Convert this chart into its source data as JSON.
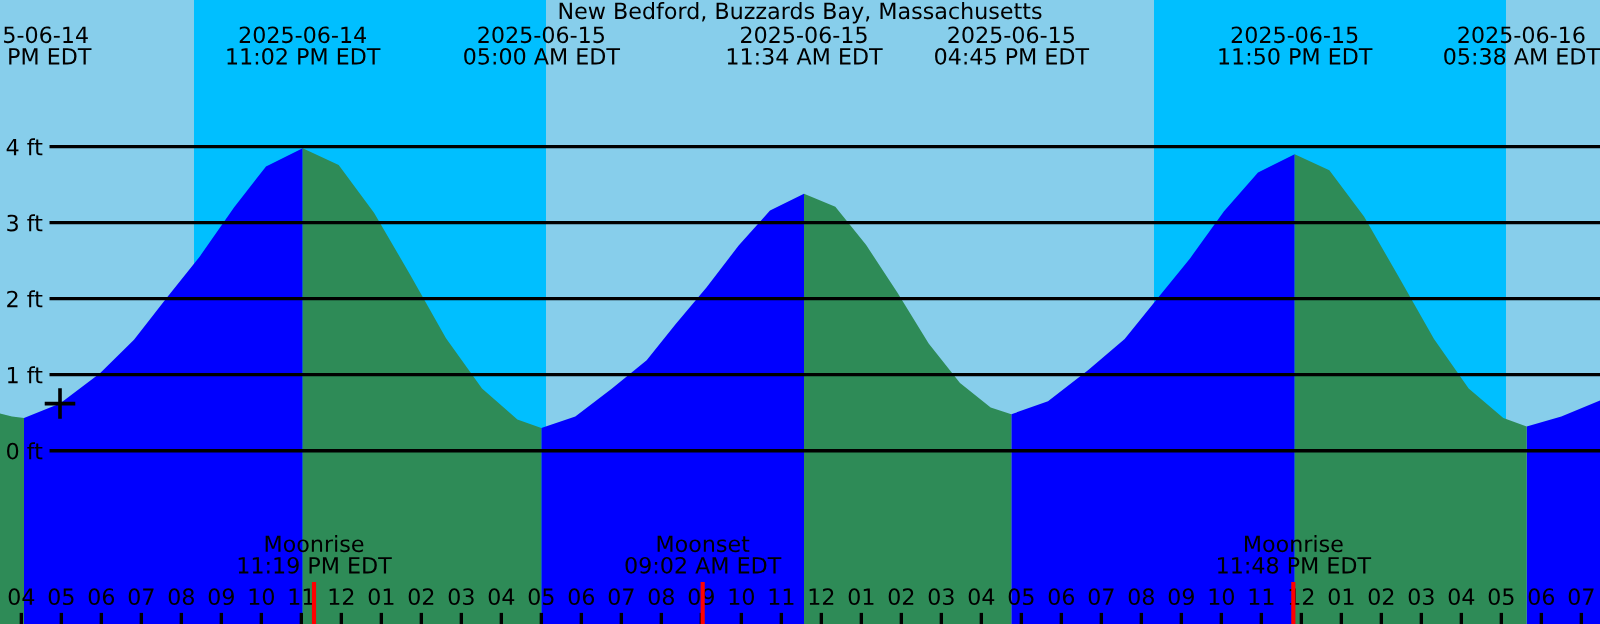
{
  "chart_data": {
    "type": "area",
    "title": "New Bedford, Buzzards Bay, Massachusetts",
    "series": [
      {
        "color": "#0000ff",
        "x": [
          "2025-06-14T16:04",
          "2025-06-14T16:58",
          "2025-06-14T17:58",
          "2025-06-14T18:49",
          "2025-06-14T19:37",
          "2025-06-14T20:28",
          "2025-06-14T21:19",
          "2025-06-14T22:07",
          "2025-06-14T23:02",
          "2025-06-15T02:00",
          "2025-06-15T05:00",
          "2025-06-15T05:51",
          "2025-06-15T06:46",
          "2025-06-15T07:38",
          "2025-06-15T08:21",
          "2025-06-15T09:08",
          "2025-06-15T09:56",
          "2025-06-15T10:43",
          "2025-06-15T11:34",
          "2025-06-15T14:00",
          "2025-06-15T16:45",
          "2025-06-15T17:40",
          "2025-06-15T18:40",
          "2025-06-15T19:35",
          "2025-06-15T20:22",
          "2025-06-15T21:13",
          "2025-06-15T22:04",
          "2025-06-15T22:55",
          "2025-06-15T23:50",
          "2025-06-16T02:00",
          "2025-06-16T05:38",
          "2025-06-16T06:30",
          "2025-06-16T07:28"
        ],
        "values": [
          0.43,
          0.62,
          1.02,
          1.46,
          2.0,
          2.56,
          3.2,
          3.74,
          3.98,
          null,
          0.3,
          0.45,
          0.82,
          1.19,
          1.66,
          2.15,
          2.7,
          3.16,
          3.38,
          null,
          0.48,
          0.65,
          1.06,
          1.47,
          1.98,
          2.53,
          3.15,
          3.66,
          3.9,
          null,
          0.32,
          0.45,
          0.66
        ]
      },
      {
        "color": "#2e8b57",
        "x": [
          "2025-06-14T15:28",
          "2025-06-14T15:46",
          "2025-06-14T16:04",
          "2025-06-14T20:00",
          "2025-06-14T23:02",
          "2025-06-14T23:56",
          "2025-06-15T00:49",
          "2025-06-15T01:43",
          "2025-06-15T02:37",
          "2025-06-15T03:31",
          "2025-06-15T04:24",
          "2025-06-15T05:00",
          "2025-06-15T08:00",
          "2025-06-15T11:34",
          "2025-06-15T12:21",
          "2025-06-15T13:07",
          "2025-06-15T13:54",
          "2025-06-15T14:41",
          "2025-06-15T15:28",
          "2025-06-15T16:14",
          "2025-06-15T16:45",
          "2025-06-15T20:00",
          "2025-06-15T23:50",
          "2025-06-16T00:42",
          "2025-06-16T01:34",
          "2025-06-16T02:26",
          "2025-06-16T03:19",
          "2025-06-16T04:11",
          "2025-06-16T05:03",
          "2025-06-16T05:38"
        ],
        "values": [
          0.49,
          0.45,
          0.43,
          null,
          3.98,
          3.76,
          3.13,
          2.32,
          1.48,
          0.82,
          0.41,
          0.3,
          null,
          3.38,
          3.21,
          2.71,
          2.08,
          1.41,
          0.89,
          0.57,
          0.48,
          null,
          3.9,
          3.69,
          3.08,
          2.29,
          1.47,
          0.82,
          0.43,
          0.32
        ]
      },
      {
        "type": "scatter",
        "color": "#000000",
        "marker": "cross",
        "x": [
          "2025-06-14T16:58"
        ],
        "values": [
          0.62
        ]
      }
    ],
    "xlim": [
      "2025-06-14T15:28",
      "2025-06-16T07:28"
    ],
    "ylim": [
      -2.28,
      5.93
    ],
    "yticks": [
      {
        "value": 0,
        "label": "0 ft"
      },
      {
        "value": 1,
        "label": "1 ft"
      },
      {
        "value": 2,
        "label": "2 ft"
      },
      {
        "value": 3,
        "label": "3 ft"
      },
      {
        "value": 4,
        "label": "4 ft"
      }
    ],
    "xticks": [
      {
        "value": "2025-06-14T16:00",
        "label": "04"
      },
      {
        "value": "2025-06-14T17:00",
        "label": "05"
      },
      {
        "value": "2025-06-14T18:00",
        "label": "06"
      },
      {
        "value": "2025-06-14T19:00",
        "label": "07"
      },
      {
        "value": "2025-06-14T20:00",
        "label": "08"
      },
      {
        "value": "2025-06-14T21:00",
        "label": "09"
      },
      {
        "value": "2025-06-14T22:00",
        "label": "10"
      },
      {
        "value": "2025-06-14T23:00",
        "label": "11"
      },
      {
        "value": "2025-06-15T00:00",
        "label": "12"
      },
      {
        "value": "2025-06-15T01:00",
        "label": "01"
      },
      {
        "value": "2025-06-15T02:00",
        "label": "02"
      },
      {
        "value": "2025-06-15T03:00",
        "label": "03"
      },
      {
        "value": "2025-06-15T04:00",
        "label": "04"
      },
      {
        "value": "2025-06-15T05:00",
        "label": "05"
      },
      {
        "value": "2025-06-15T06:00",
        "label": "06"
      },
      {
        "value": "2025-06-15T07:00",
        "label": "07"
      },
      {
        "value": "2025-06-15T08:00",
        "label": "08"
      },
      {
        "value": "2025-06-15T09:00",
        "label": "09"
      },
      {
        "value": "2025-06-15T10:00",
        "label": "10"
      },
      {
        "value": "2025-06-15T11:00",
        "label": "11"
      },
      {
        "value": "2025-06-15T12:00",
        "label": "12"
      },
      {
        "value": "2025-06-15T13:00",
        "label": "01"
      },
      {
        "value": "2025-06-15T14:00",
        "label": "02"
      },
      {
        "value": "2025-06-15T15:00",
        "label": "03"
      },
      {
        "value": "2025-06-15T16:00",
        "label": "04"
      },
      {
        "value": "2025-06-15T17:00",
        "label": "05"
      },
      {
        "value": "2025-06-15T18:00",
        "label": "06"
      },
      {
        "value": "2025-06-15T19:00",
        "label": "07"
      },
      {
        "value": "2025-06-15T20:00",
        "label": "08"
      },
      {
        "value": "2025-06-15T21:00",
        "label": "09"
      },
      {
        "value": "2025-06-15T22:00",
        "label": "10"
      },
      {
        "value": "2025-06-15T23:00",
        "label": "11"
      },
      {
        "value": "2025-06-16T00:00",
        "label": "12"
      },
      {
        "value": "2025-06-16T01:00",
        "label": "01"
      },
      {
        "value": "2025-06-16T02:00",
        "label": "02"
      },
      {
        "value": "2025-06-16T03:00",
        "label": "03"
      },
      {
        "value": "2025-06-16T04:00",
        "label": "04"
      },
      {
        "value": "2025-06-16T05:00",
        "label": "05"
      },
      {
        "value": "2025-06-16T06:00",
        "label": "06"
      },
      {
        "value": "2025-06-16T07:00",
        "label": "07"
      }
    ],
    "grid": "y",
    "bands": [
      {
        "axis": "x",
        "from": "2025-06-14T20:19",
        "to": "2025-06-15T05:07",
        "color": "#00bfff"
      },
      {
        "axis": "x",
        "from": "2025-06-15T20:19",
        "to": "2025-06-16T05:07",
        "color": "#00bfff"
      }
    ],
    "ref_lines": [
      {
        "axis": "x",
        "value": "2025-06-14T23:19",
        "label": "Moonrise\n11:19 PM EDT",
        "color": "#ff0000"
      },
      {
        "axis": "x",
        "value": "2025-06-15T09:02",
        "label": "Moonset\n09:02 AM EDT",
        "color": "#ff0000"
      },
      {
        "axis": "x",
        "value": "2025-06-15T23:48",
        "label": "Moonrise\n11:48 PM EDT",
        "color": "#ff0000"
      }
    ],
    "annotations": [
      "5-06-14\n PM EDT",
      "2025-06-14\n11:02 PM EDT",
      "2025-06-15\n05:00 AM EDT",
      "2025-06-15\n11:34 AM EDT",
      "2025-06-15\n04:45 PM EDT",
      "2025-06-15\n11:50 PM EDT",
      "2025-06-16\n05:38 AM EDT"
    ]
  }
}
